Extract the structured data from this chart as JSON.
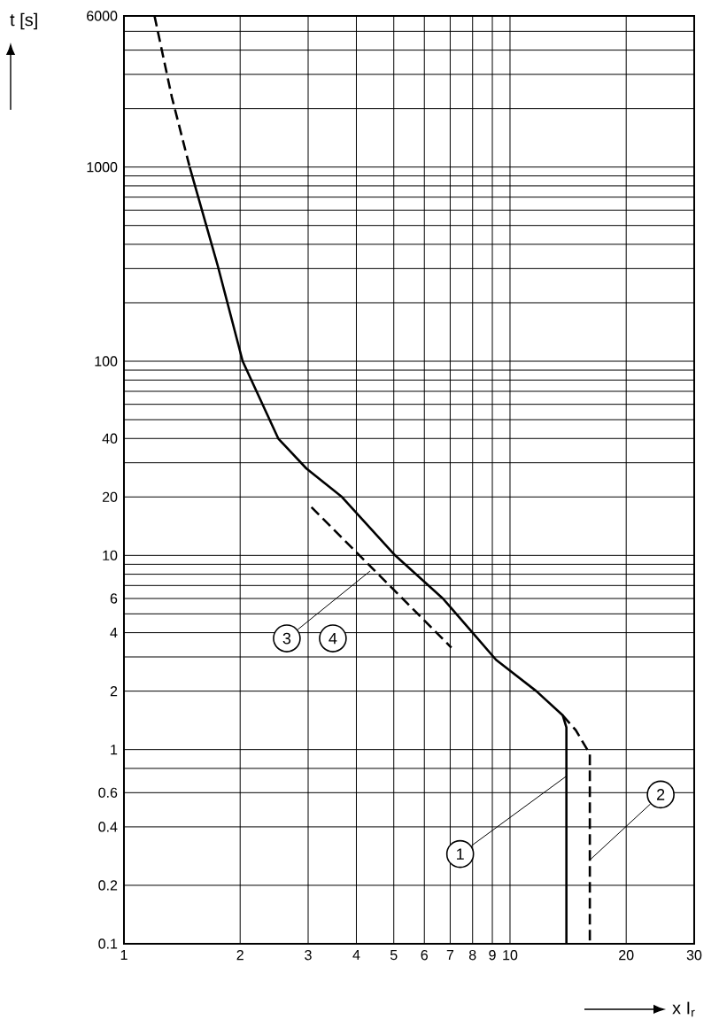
{
  "chart_data": {
    "type": "line",
    "xlabel": "x I$_{r}$",
    "ylabel": "t [s]",
    "log": "xy",
    "grid": true,
    "xlim": [
      1,
      30
    ],
    "ylim": [
      0.1,
      6000
    ],
    "xticks": [
      1,
      2,
      3,
      4,
      5,
      6,
      7,
      8,
      9,
      10,
      20,
      30
    ],
    "yticks": [
      0.1,
      0.2,
      0.4,
      0.6,
      {
        "value": 0.8,
        "label": null
      },
      1,
      2,
      {
        "value": 3,
        "label": null
      },
      4,
      {
        "value": 5,
        "label": null
      },
      6,
      {
        "value": 7,
        "label": null
      },
      {
        "value": 8,
        "label": null
      },
      {
        "value": 9,
        "label": null
      },
      10,
      20,
      {
        "value": 30,
        "label": null
      },
      40,
      {
        "value": 50,
        "label": null
      },
      {
        "value": 60,
        "label": null
      },
      {
        "value": 70,
        "label": null
      },
      {
        "value": 80,
        "label": null
      },
      {
        "value": 90,
        "label": null
      },
      100,
      {
        "value": 200,
        "label": null
      },
      {
        "value": 300,
        "label": null
      },
      {
        "value": 400,
        "label": null
      },
      {
        "value": 500,
        "label": null
      },
      {
        "value": 600,
        "label": null
      },
      {
        "value": 700,
        "label": null
      },
      {
        "value": 800,
        "label": null
      },
      {
        "value": 900,
        "label": null
      },
      1000,
      {
        "value": 2000,
        "label": null
      },
      {
        "value": 3000,
        "label": null
      },
      {
        "value": 4000,
        "label": null
      },
      {
        "value": 5000,
        "label": null
      },
      6000
    ],
    "series": [
      {
        "color": "#000000",
        "line_style": "dashed",
        "x": [
          1.2,
          1.33,
          1.48
        ],
        "values": [
          6000,
          2300,
          1000
        ]
      },
      {
        "color": "#000000",
        "line_style": "solid",
        "x": [
          1.48,
          1.75,
          2.03,
          2.51,
          2.97,
          3.67,
          5.04,
          6.7,
          8.0,
          9.2,
          11.7,
          13.7,
          14,
          14
        ],
        "values": [
          1000,
          310,
          100,
          40,
          28,
          20,
          10,
          6,
          4,
          2.9,
          2,
          1.5,
          1.3,
          0.1
        ]
      },
      {
        "color": "#000000",
        "line_style": "dashed",
        "x": [
          13.7,
          14.8,
          16.1,
          16.1
        ],
        "values": [
          1.5,
          1.26,
          0.95,
          0.1
        ]
      },
      {
        "color": "#000000",
        "line_style": "dashed",
        "x": [
          3.06,
          7.05
        ],
        "values": [
          17.7,
          3.35
        ]
      }
    ],
    "annotations": [
      {
        "text": "1",
        "x": 14,
        "y": 0.73
      },
      {
        "text": "2",
        "x": 16.1,
        "y": 0.27
      },
      {
        "text": "3",
        "x": 4.34,
        "y": 8.3
      },
      "4"
    ]
  }
}
